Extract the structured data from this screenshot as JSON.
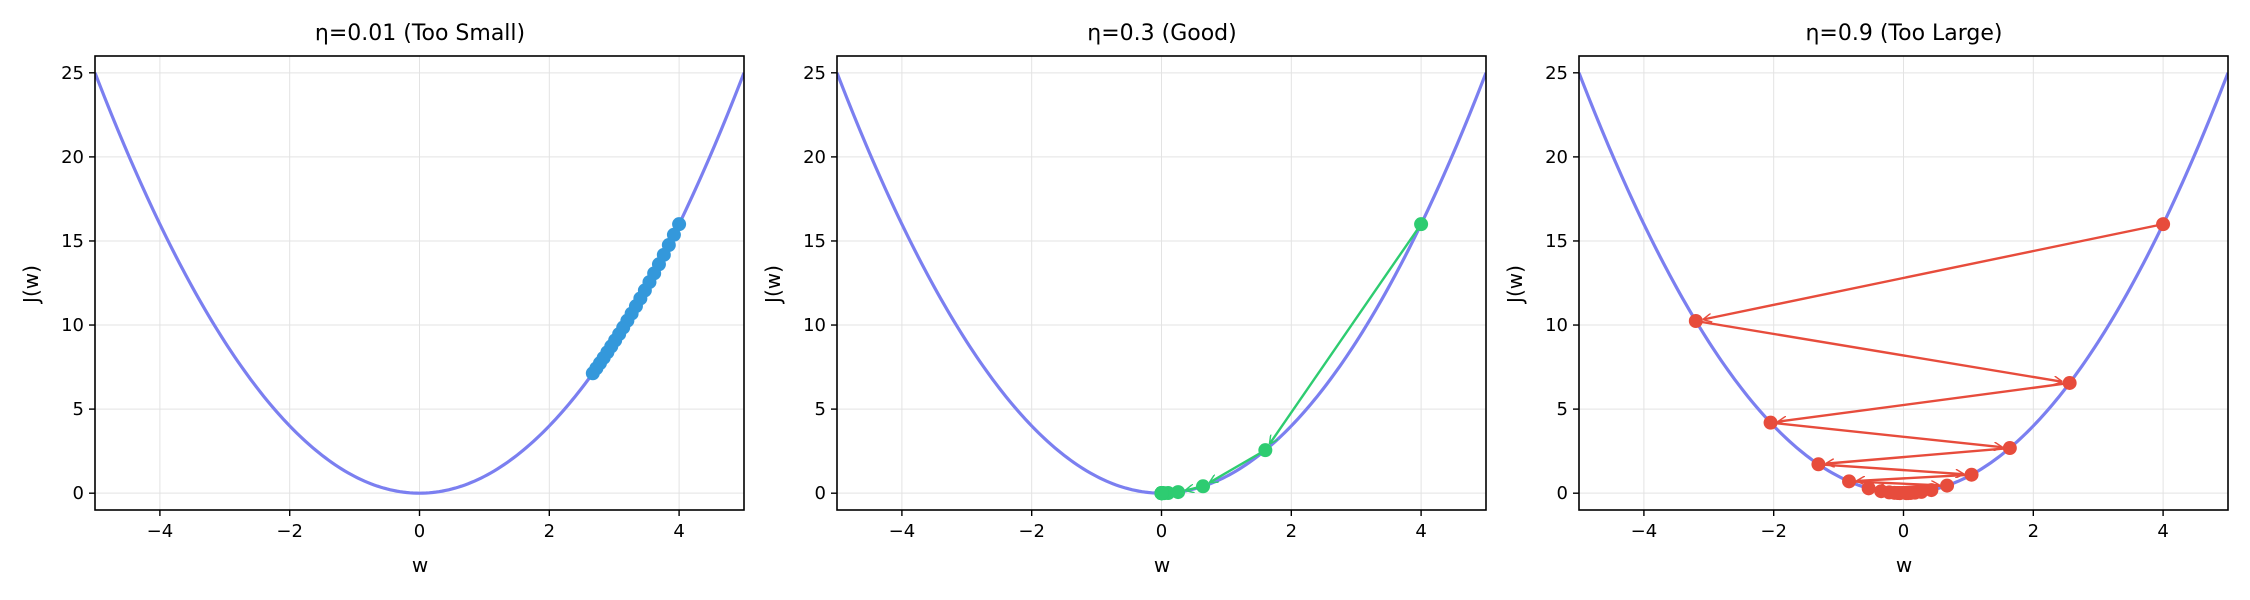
{
  "chart_data": [
    {
      "type": "line",
      "title": "η=0.01 (Too Small)",
      "xlabel": "w",
      "ylabel": "J(w)",
      "xlim": [
        -5,
        5
      ],
      "ylim": [
        -1,
        26
      ],
      "xticks": [
        -4,
        -2,
        0,
        2,
        4
      ],
      "xtick_labels": [
        "−4",
        "−2",
        "0",
        "2",
        "4"
      ],
      "yticks": [
        0,
        5,
        10,
        15,
        20,
        25
      ],
      "ytick_labels": [
        "0",
        "5",
        "10",
        "15",
        "20",
        "25"
      ],
      "grid": true,
      "curve": {
        "function": "w^2",
        "x_range": [
          -5,
          5
        ],
        "color": "#7b7ff0"
      },
      "learning_rate": 0.01,
      "start_w": 4.0,
      "steps": 20,
      "path_color": "#3498db",
      "show_arrows": false
    },
    {
      "type": "line",
      "title": "η=0.3 (Good)",
      "xlabel": "w",
      "ylabel": "J(w)",
      "xlim": [
        -5,
        5
      ],
      "ylim": [
        -1,
        26
      ],
      "xticks": [
        -4,
        -2,
        0,
        2,
        4
      ],
      "xtick_labels": [
        "−4",
        "−2",
        "0",
        "2",
        "4"
      ],
      "yticks": [
        0,
        5,
        10,
        15,
        20,
        25
      ],
      "ytick_labels": [
        "0",
        "5",
        "10",
        "15",
        "20",
        "25"
      ],
      "grid": true,
      "curve": {
        "function": "w^2",
        "x_range": [
          -5,
          5
        ],
        "color": "#7b7ff0"
      },
      "learning_rate": 0.3,
      "start_w": 4.0,
      "steps": 20,
      "path_color": "#2ecc71",
      "show_arrows": true
    },
    {
      "type": "line",
      "title": "η=0.9 (Too Large)",
      "xlabel": "w",
      "ylabel": "J(w)",
      "xlim": [
        -5,
        5
      ],
      "ylim": [
        -1,
        26
      ],
      "xticks": [
        -4,
        -2,
        0,
        2,
        4
      ],
      "xtick_labels": [
        "−4",
        "−2",
        "0",
        "2",
        "4"
      ],
      "yticks": [
        0,
        5,
        10,
        15,
        20,
        25
      ],
      "ytick_labels": [
        "0",
        "5",
        "10",
        "15",
        "20",
        "25"
      ],
      "grid": true,
      "curve": {
        "function": "w^2",
        "x_range": [
          -5,
          5
        ],
        "color": "#7b7ff0"
      },
      "learning_rate": 0.9,
      "start_w": 4.0,
      "steps": 20,
      "path_color": "#e74c3c",
      "show_arrows": true
    }
  ]
}
